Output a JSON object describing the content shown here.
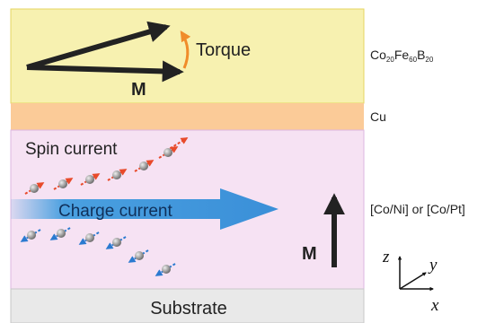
{
  "layers": [
    {
      "name": {
        "parts": [
          {
            "symbol": "Co",
            "sub": "20"
          },
          {
            "symbol": "Fe",
            "sub": "60"
          },
          {
            "symbol": "B",
            "sub": "20"
          }
        ]
      },
      "labels": {
        "torque": "Torque",
        "magnetization": "M"
      }
    },
    {
      "name": "Cu"
    },
    {
      "name": "[Co/Ni] or [Co/Pt]",
      "labels": {
        "spin_current": "Spin current",
        "charge_current": "Charge current",
        "magnetization": "M"
      }
    },
    {
      "name": "Substrate"
    }
  ],
  "axes": {
    "z": "z",
    "y": "y",
    "x": "x"
  }
}
